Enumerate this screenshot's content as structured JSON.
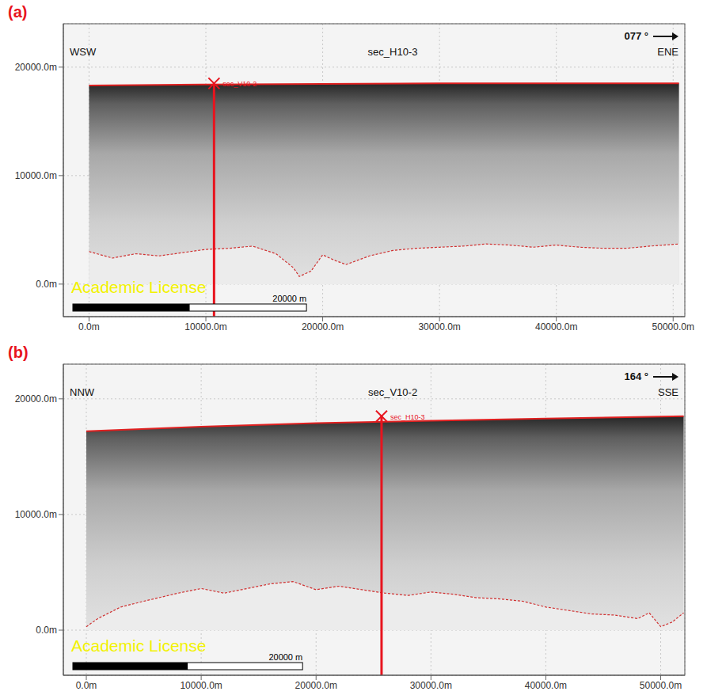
{
  "chart_data": [
    {
      "type": "area",
      "panel": "(a)",
      "direction_left": "WSW",
      "section": "sec_H10-3",
      "direction_right": "ENE",
      "heading": "077 °",
      "watermark": "Academic License",
      "scale_bar": {
        "length": 20000,
        "label": "20000 m"
      },
      "marker": {
        "x": 10700,
        "label": "sec_V10-2"
      },
      "xlim": [
        -2200,
        51000
      ],
      "xticks": [
        {
          "value": 0,
          "label": "0.0m"
        },
        {
          "value": 10000,
          "label": "10000.0m"
        },
        {
          "value": 20000,
          "label": "20000.0m"
        },
        {
          "value": 30000,
          "label": "30000.0m"
        },
        {
          "value": 40000,
          "label": "40000.0m"
        },
        {
          "value": 50000,
          "label": "50000.0m"
        }
      ],
      "ylim": [
        -3000,
        24000
      ],
      "yticks": [
        {
          "value": 0,
          "label": "0.0m"
        },
        {
          "value": 10000,
          "label": "10000.0m"
        },
        {
          "value": 20000,
          "label": "20000.0m"
        }
      ],
      "grid": true,
      "series": [
        {
          "type": "area",
          "color": "#e02020",
          "line_style": "solid",
          "x": [
            0,
            10000,
            20000,
            30000,
            40000,
            50500
          ],
          "values": [
            18300,
            18400,
            18450,
            18500,
            18500,
            18500
          ]
        },
        {
          "type": "area",
          "color": "#d03030",
          "line_style": "dashed",
          "x": [
            0,
            2000,
            4000,
            6000,
            8000,
            10000,
            12000,
            14000,
            16000,
            17500,
            18000,
            19000,
            20000,
            21000,
            22000,
            24000,
            26000,
            28000,
            30000,
            32000,
            34000,
            36000,
            38000,
            40000,
            42000,
            44000,
            46000,
            48000,
            50500
          ],
          "values": [
            3000,
            2400,
            2800,
            2600,
            2900,
            3200,
            3300,
            3500,
            2800,
            1500,
            700,
            1200,
            2700,
            2200,
            1800,
            2600,
            3100,
            3300,
            3400,
            3500,
            3700,
            3600,
            3400,
            3600,
            3400,
            3300,
            3300,
            3500,
            3700
          ]
        }
      ]
    },
    {
      "type": "area",
      "panel": "(b)",
      "direction_left": "NNW",
      "section": "sec_V10-2",
      "direction_right": "SSE",
      "heading": "164 °",
      "watermark": "Academic License",
      "scale_bar": {
        "length": 20000,
        "label": "20000 m"
      },
      "marker": {
        "x": 25700,
        "label": "sec_H10-3"
      },
      "xlim": [
        -2000,
        52100
      ],
      "xticks": [
        {
          "value": 0,
          "label": "0.0m"
        },
        {
          "value": 10000,
          "label": "10000.0m"
        },
        {
          "value": 20000,
          "label": "20000.0m"
        },
        {
          "value": 30000,
          "label": "30000.0m"
        },
        {
          "value": 40000,
          "label": "40000.0m"
        },
        {
          "value": 50000,
          "label": "50000.0m"
        }
      ],
      "ylim": [
        -3900,
        23000
      ],
      "yticks": [
        {
          "value": 0,
          "label": "0.0m"
        },
        {
          "value": 10000,
          "label": "10000.0m"
        },
        {
          "value": 20000,
          "label": "20000.0m"
        }
      ],
      "grid": true,
      "series": [
        {
          "type": "area",
          "color": "#e02020",
          "line_style": "solid",
          "x": [
            0,
            10000,
            20000,
            30000,
            40000,
            52000
          ],
          "values": [
            17200,
            17600,
            17900,
            18100,
            18300,
            18500
          ]
        },
        {
          "type": "area",
          "color": "#d03030",
          "line_style": "dashed",
          "x": [
            0,
            1000,
            3000,
            5000,
            8000,
            10000,
            12000,
            14000,
            16000,
            18000,
            20000,
            22000,
            24000,
            26000,
            28000,
            30000,
            32000,
            34000,
            36000,
            38000,
            40000,
            42000,
            44000,
            46000,
            48000,
            49000,
            50000,
            51000,
            52000
          ],
          "values": [
            300,
            1000,
            2000,
            2500,
            3200,
            3600,
            3200,
            3600,
            4000,
            4200,
            3500,
            3800,
            3500,
            3200,
            3000,
            3300,
            3100,
            2800,
            2700,
            2500,
            2000,
            1700,
            1400,
            1300,
            1000,
            1500,
            300,
            700,
            1500
          ]
        }
      ]
    }
  ]
}
